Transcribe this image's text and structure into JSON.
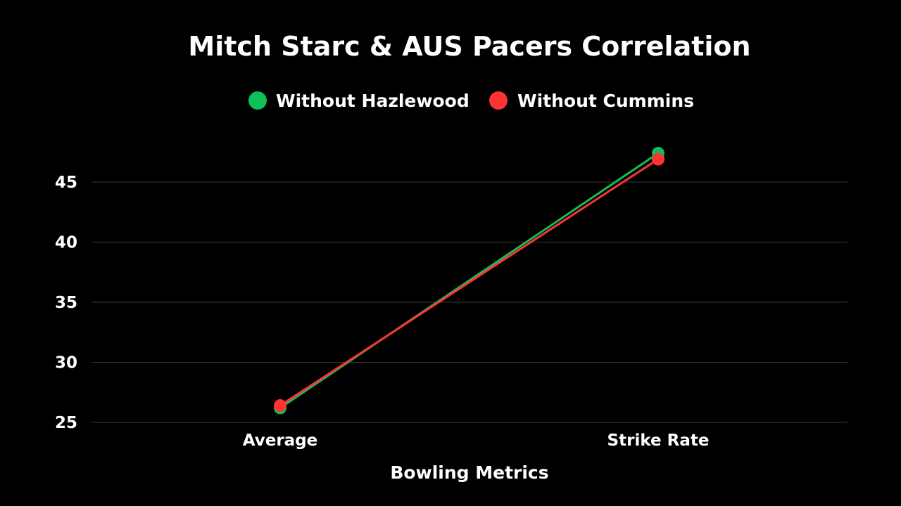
{
  "chart_data": {
    "type": "line",
    "title": "Mitch Starc & AUS Pacers Correlation",
    "xlabel": "Bowling Metrics",
    "ylabel": "",
    "categories": [
      "Average",
      "Strike Rate"
    ],
    "ylim": [
      25,
      48
    ],
    "yticks": [
      25,
      30,
      35,
      40,
      45
    ],
    "grid": true,
    "legend_position": "top-center",
    "series": [
      {
        "name": "Without Hazlewood",
        "color": "#0fbf5a",
        "values": [
          26.2,
          47.4
        ]
      },
      {
        "name": "Without Cummins",
        "color": "#ff3333",
        "values": [
          26.4,
          46.9
        ]
      }
    ]
  }
}
